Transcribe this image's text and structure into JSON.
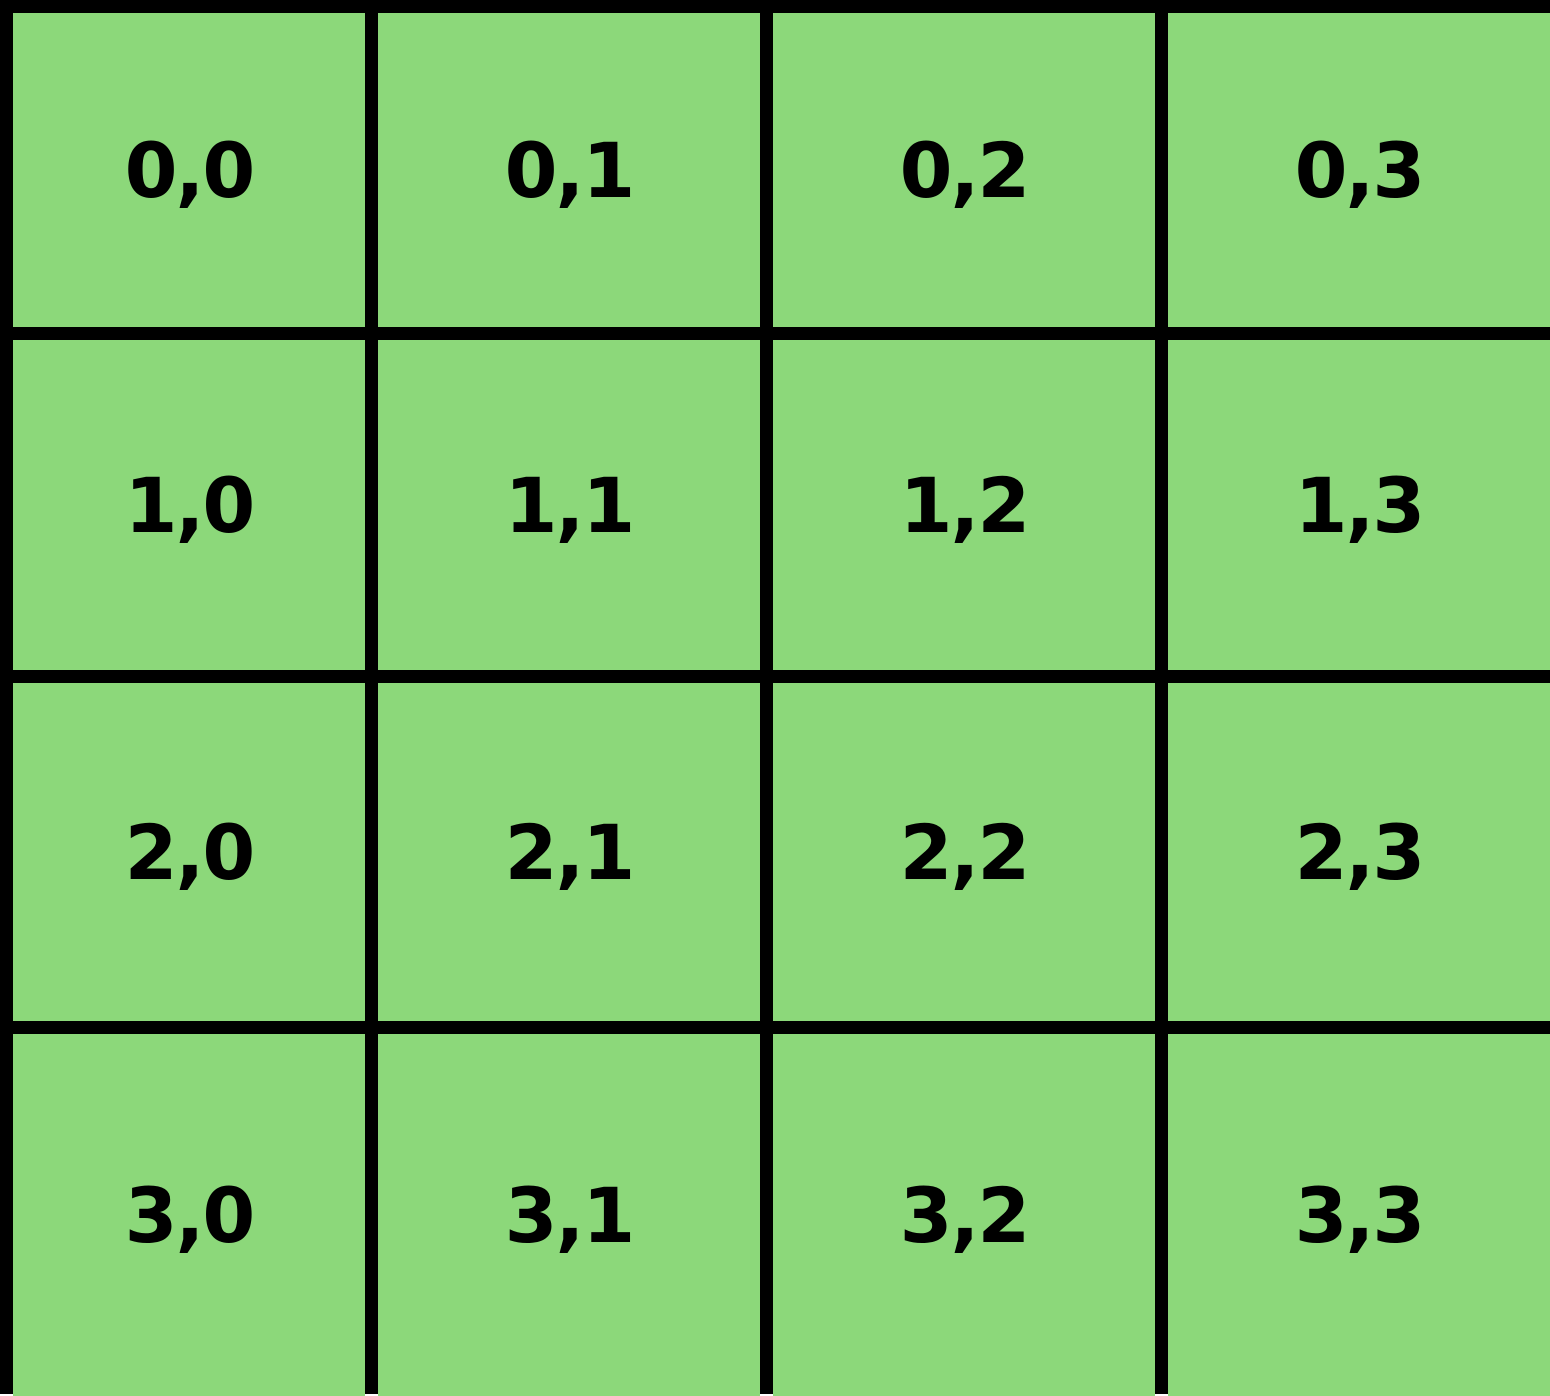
{
  "grid": {
    "rows": 4,
    "cols": 4,
    "cell_color": "#8cd87a",
    "border_color": "#000000",
    "labels": [
      [
        "0,0",
        "0,1",
        "0,2",
        "0,3"
      ],
      [
        "1,0",
        "1,1",
        "1,2",
        "1,3"
      ],
      [
        "2,0",
        "2,1",
        "2,2",
        "2,3"
      ],
      [
        "3,0",
        "3,1",
        "3,2",
        "3,3"
      ]
    ]
  }
}
